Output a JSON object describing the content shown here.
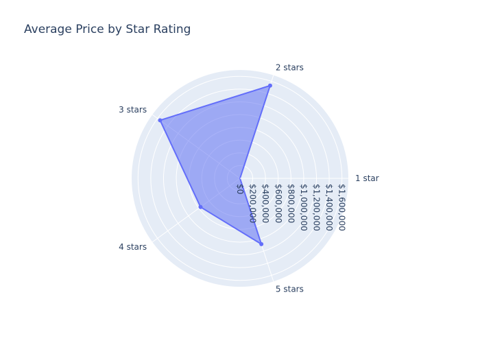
{
  "chart_data": {
    "type": "radar",
    "title": "Average Price by Star Rating",
    "categories": [
      "1 star",
      "2 stars",
      "3 stars",
      "4 stars",
      "5 stars"
    ],
    "series": [
      {
        "values": [
          0,
          1530000,
          1550000,
          765000,
          1085000
        ]
      }
    ],
    "radial_axis": {
      "range": [
        0,
        1700000
      ],
      "ticks": [
        0,
        200000,
        400000,
        600000,
        800000,
        1000000,
        1200000,
        1400000,
        1600000
      ],
      "tick_labels": [
        "$0",
        "$200,000",
        "$400,000",
        "$600,000",
        "$800,000",
        "$1,000,000",
        "$1,200,000",
        "$1,400,000",
        "$1,600,000"
      ]
    },
    "grid": true,
    "legend": false,
    "colors": {
      "fill": "#6372f3",
      "line": "#636efa",
      "polar_bg": "#e5ecf6",
      "grid": "#ffffff",
      "text": "#2a3f5f"
    }
  }
}
